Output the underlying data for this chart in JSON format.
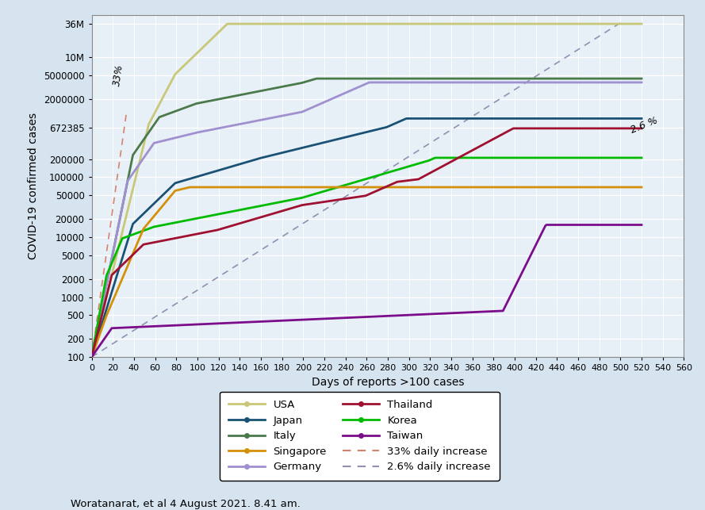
{
  "title": "",
  "xlabel": "Days of reports >100 cases",
  "ylabel": "COVID-19 confirmed cases",
  "background_color": "#d6e4f0",
  "plot_bg_color": "#e8f0f7",
  "x_max": 560,
  "x_ticks": [
    0,
    20,
    40,
    60,
    80,
    100,
    120,
    140,
    160,
    180,
    200,
    220,
    240,
    260,
    280,
    300,
    320,
    340,
    360,
    380,
    400,
    420,
    440,
    460,
    480,
    500,
    520,
    540,
    560
  ],
  "y_ticks": [
    100,
    200,
    500,
    1000,
    2000,
    5000,
    10000,
    20000,
    50000,
    100000,
    200000,
    672385,
    2000000,
    5000000,
    10000000,
    36000000
  ],
  "y_tick_labels": [
    "100",
    "200",
    "500",
    "1000",
    "2000",
    "5000",
    "10000",
    "20000",
    "50000",
    "100000",
    "200000",
    "672385",
    "2000000",
    "5000000",
    "10M",
    "36M"
  ],
  "caption": "Woratanarat, et al 4 August 2021. 8.41 am.",
  "countries": {
    "USA": {
      "color": "#c8c878",
      "lw": 2.0
    },
    "Italy": {
      "color": "#4a7a4a",
      "lw": 2.0
    },
    "Germany": {
      "color": "#a090d0",
      "lw": 2.0
    },
    "Korea": {
      "color": "#00bb00",
      "lw": 2.0
    },
    "Japan": {
      "color": "#1a5276",
      "lw": 2.0
    },
    "Singapore": {
      "color": "#d4900a",
      "lw": 2.0
    },
    "Thailand": {
      "color": "#a01030",
      "lw": 2.0
    },
    "Taiwan": {
      "color": "#7b0d8a",
      "lw": 2.0
    }
  },
  "ref_line_33_color": "#d4826e",
  "ref_line_26_color": "#9090b0",
  "legend_order": [
    "USA",
    "Japan",
    "Italy",
    "Singapore",
    "Germany",
    "Thailand",
    "Korea",
    "Taiwan"
  ]
}
